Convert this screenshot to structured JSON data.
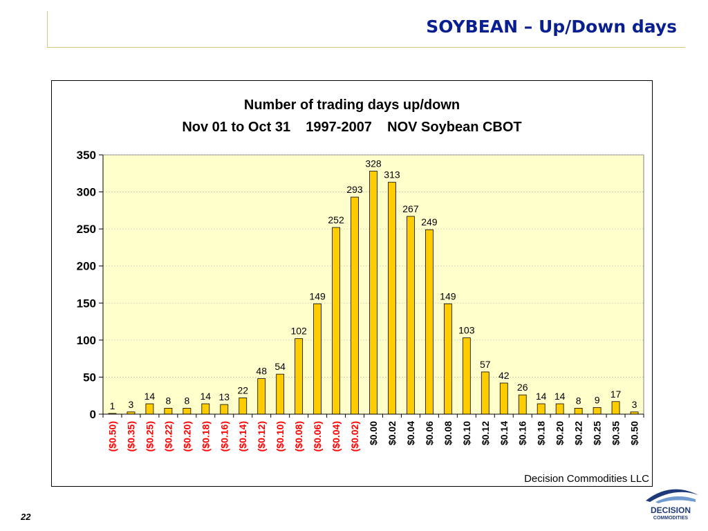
{
  "slide": {
    "title": "SOYBEAN – Up/Down days",
    "page_number": "22"
  },
  "logo": {
    "line1": "DECISION",
    "line2": "COMMODITIES"
  },
  "credit": "Decision Commodities LLC",
  "colors": {
    "bar": "#FFCC00",
    "plot_background": "#FFFFCC",
    "negative_label": "#FF0000",
    "positive_label": "#000000",
    "title_blue": "#0A1F8F"
  },
  "chart_data": {
    "type": "bar",
    "title": "Number of trading days up/down",
    "subtitle": "Nov 01 to Oct 31    1997-2007    NOV Soybean CBOT",
    "xlabel": "",
    "ylabel": "",
    "ylim": [
      0,
      350
    ],
    "yticks": [
      0,
      50,
      100,
      150,
      200,
      250,
      300,
      350
    ],
    "grid": true,
    "data_labels": true,
    "categories": [
      "($0.50)",
      "($0.35)",
      "($0.25)",
      "($0.22)",
      "($0.20)",
      "($0.18)",
      "($0.16)",
      "($0.14)",
      "($0.12)",
      "($0.10)",
      "($0.08)",
      "($0.06)",
      "($0.04)",
      "($0.02)",
      "$0.00",
      "$0.02",
      "$0.04",
      "$0.06",
      "$0.08",
      "$0.10",
      "$0.12",
      "$0.14",
      "$0.16",
      "$0.18",
      "$0.20",
      "$0.22",
      "$0.25",
      "$0.35",
      "$0.50"
    ],
    "values": [
      1,
      3,
      14,
      8,
      8,
      14,
      13,
      22,
      48,
      54,
      102,
      149,
      252,
      293,
      328,
      313,
      267,
      249,
      149,
      103,
      57,
      42,
      26,
      14,
      14,
      8,
      9,
      17,
      3
    ]
  }
}
